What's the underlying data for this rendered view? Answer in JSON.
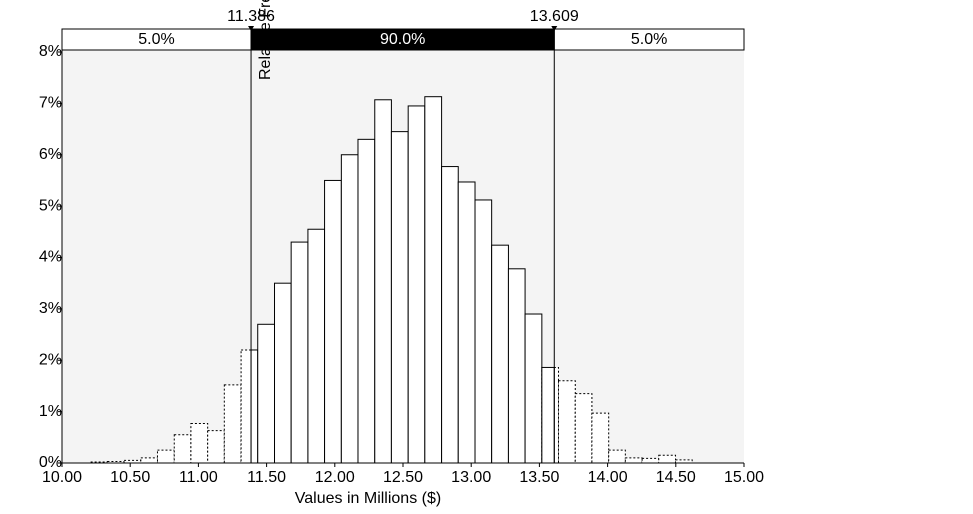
{
  "chart_data": {
    "type": "histogram",
    "xlabel": "Values in Millions ($)",
    "ylabel": "Relative Frequency",
    "bins": [
      10.21,
      10.333,
      10.455,
      10.578,
      10.7,
      10.823,
      10.945,
      11.068,
      11.19,
      11.313,
      11.435,
      11.558,
      11.68,
      11.803,
      11.925,
      12.048,
      12.17,
      12.293,
      12.415,
      12.538,
      12.66,
      12.783,
      12.905,
      13.028,
      13.15,
      13.273,
      13.395,
      13.518,
      13.64,
      13.763,
      13.885,
      14.008,
      14.13,
      14.253,
      14.375,
      14.498,
      14.62
    ],
    "values": [
      0.02,
      0.03,
      0.05,
      0.1,
      0.25,
      0.55,
      0.77,
      0.63,
      1.52,
      2.2,
      2.7,
      3.5,
      4.3,
      4.55,
      5.5,
      6.0,
      6.3,
      7.07,
      6.45,
      6.95,
      7.13,
      5.77,
      5.47,
      5.12,
      4.24,
      3.78,
      2.9,
      1.86,
      1.6,
      1.35,
      0.97,
      0.25,
      0.1,
      0.09,
      0.15,
      0.06
    ],
    "xlim": [
      10,
      15
    ],
    "xticks": [
      {
        "value": 10,
        "label": "10.00"
      },
      {
        "value": 10.5,
        "label": "10.50"
      },
      {
        "value": 11,
        "label": "11.00"
      },
      {
        "value": 11.5,
        "label": "11.50"
      },
      {
        "value": 12,
        "label": "12.00"
      },
      {
        "value": 12.5,
        "label": "12.50"
      },
      {
        "value": 13,
        "label": "13.00"
      },
      {
        "value": 13.5,
        "label": "13.50"
      },
      {
        "value": 14,
        "label": "14.00"
      },
      {
        "value": 14.5,
        "label": "14.50"
      },
      {
        "value": 15,
        "label": "15.00"
      }
    ],
    "ylim": [
      0,
      8
    ],
    "yticks": [
      {
        "value": 0,
        "label": "0%"
      },
      {
        "value": 1,
        "label": "1%"
      },
      {
        "value": 2,
        "label": "2%"
      },
      {
        "value": 3,
        "label": "3%"
      },
      {
        "value": 4,
        "label": "4%"
      },
      {
        "value": 5,
        "label": "5%"
      },
      {
        "value": 6,
        "label": "6%"
      },
      {
        "value": 7,
        "label": "7%"
      },
      {
        "value": 8,
        "label": "8%"
      }
    ],
    "delimiters": [
      11.386,
      13.609
    ],
    "band_percents": [
      {
        "value": 5,
        "label": "5.0%"
      },
      {
        "value": 90,
        "label": "90.0%"
      },
      {
        "value": 5,
        "label": "5.0%"
      }
    ]
  }
}
